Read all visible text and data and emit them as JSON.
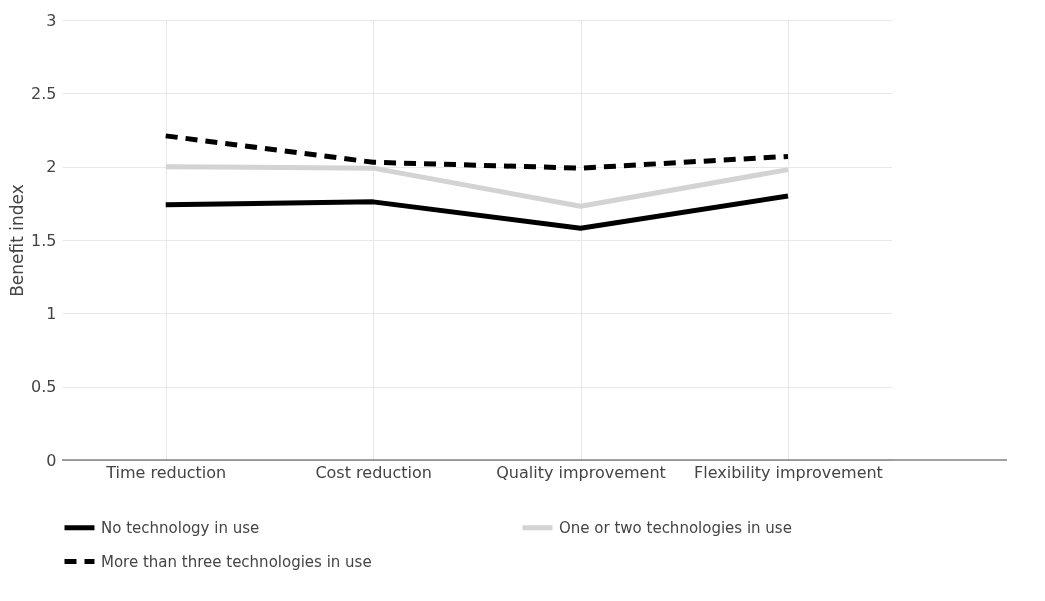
{
  "chart_data": {
    "type": "line",
    "ylabel": "Benefit index",
    "categories": [
      "Time reduction",
      "Cost reduction",
      "Quality improvement",
      "Flexibility improvement"
    ],
    "series": [
      {
        "name": "No technology in use",
        "color": "#000000",
        "values": [
          1.74,
          1.76,
          1.58,
          1.8
        ]
      },
      {
        "name": "One or two technologies in use",
        "color": "#d3d3d3",
        "values": [
          2.0,
          1.99,
          1.73,
          1.98
        ]
      },
      {
        "name": "More than three technologies in use",
        "color": "#000000",
        "line_style": "dashed",
        "values": [
          2.21,
          2.03,
          1.99,
          2.07
        ]
      }
    ],
    "ylim": [
      0,
      3
    ],
    "yticks": [
      0,
      0.5,
      1,
      1.5,
      2,
      2.5,
      3
    ],
    "grid": true,
    "legend": "bottom",
    "marker": "none",
    "line_style": "solid"
  }
}
